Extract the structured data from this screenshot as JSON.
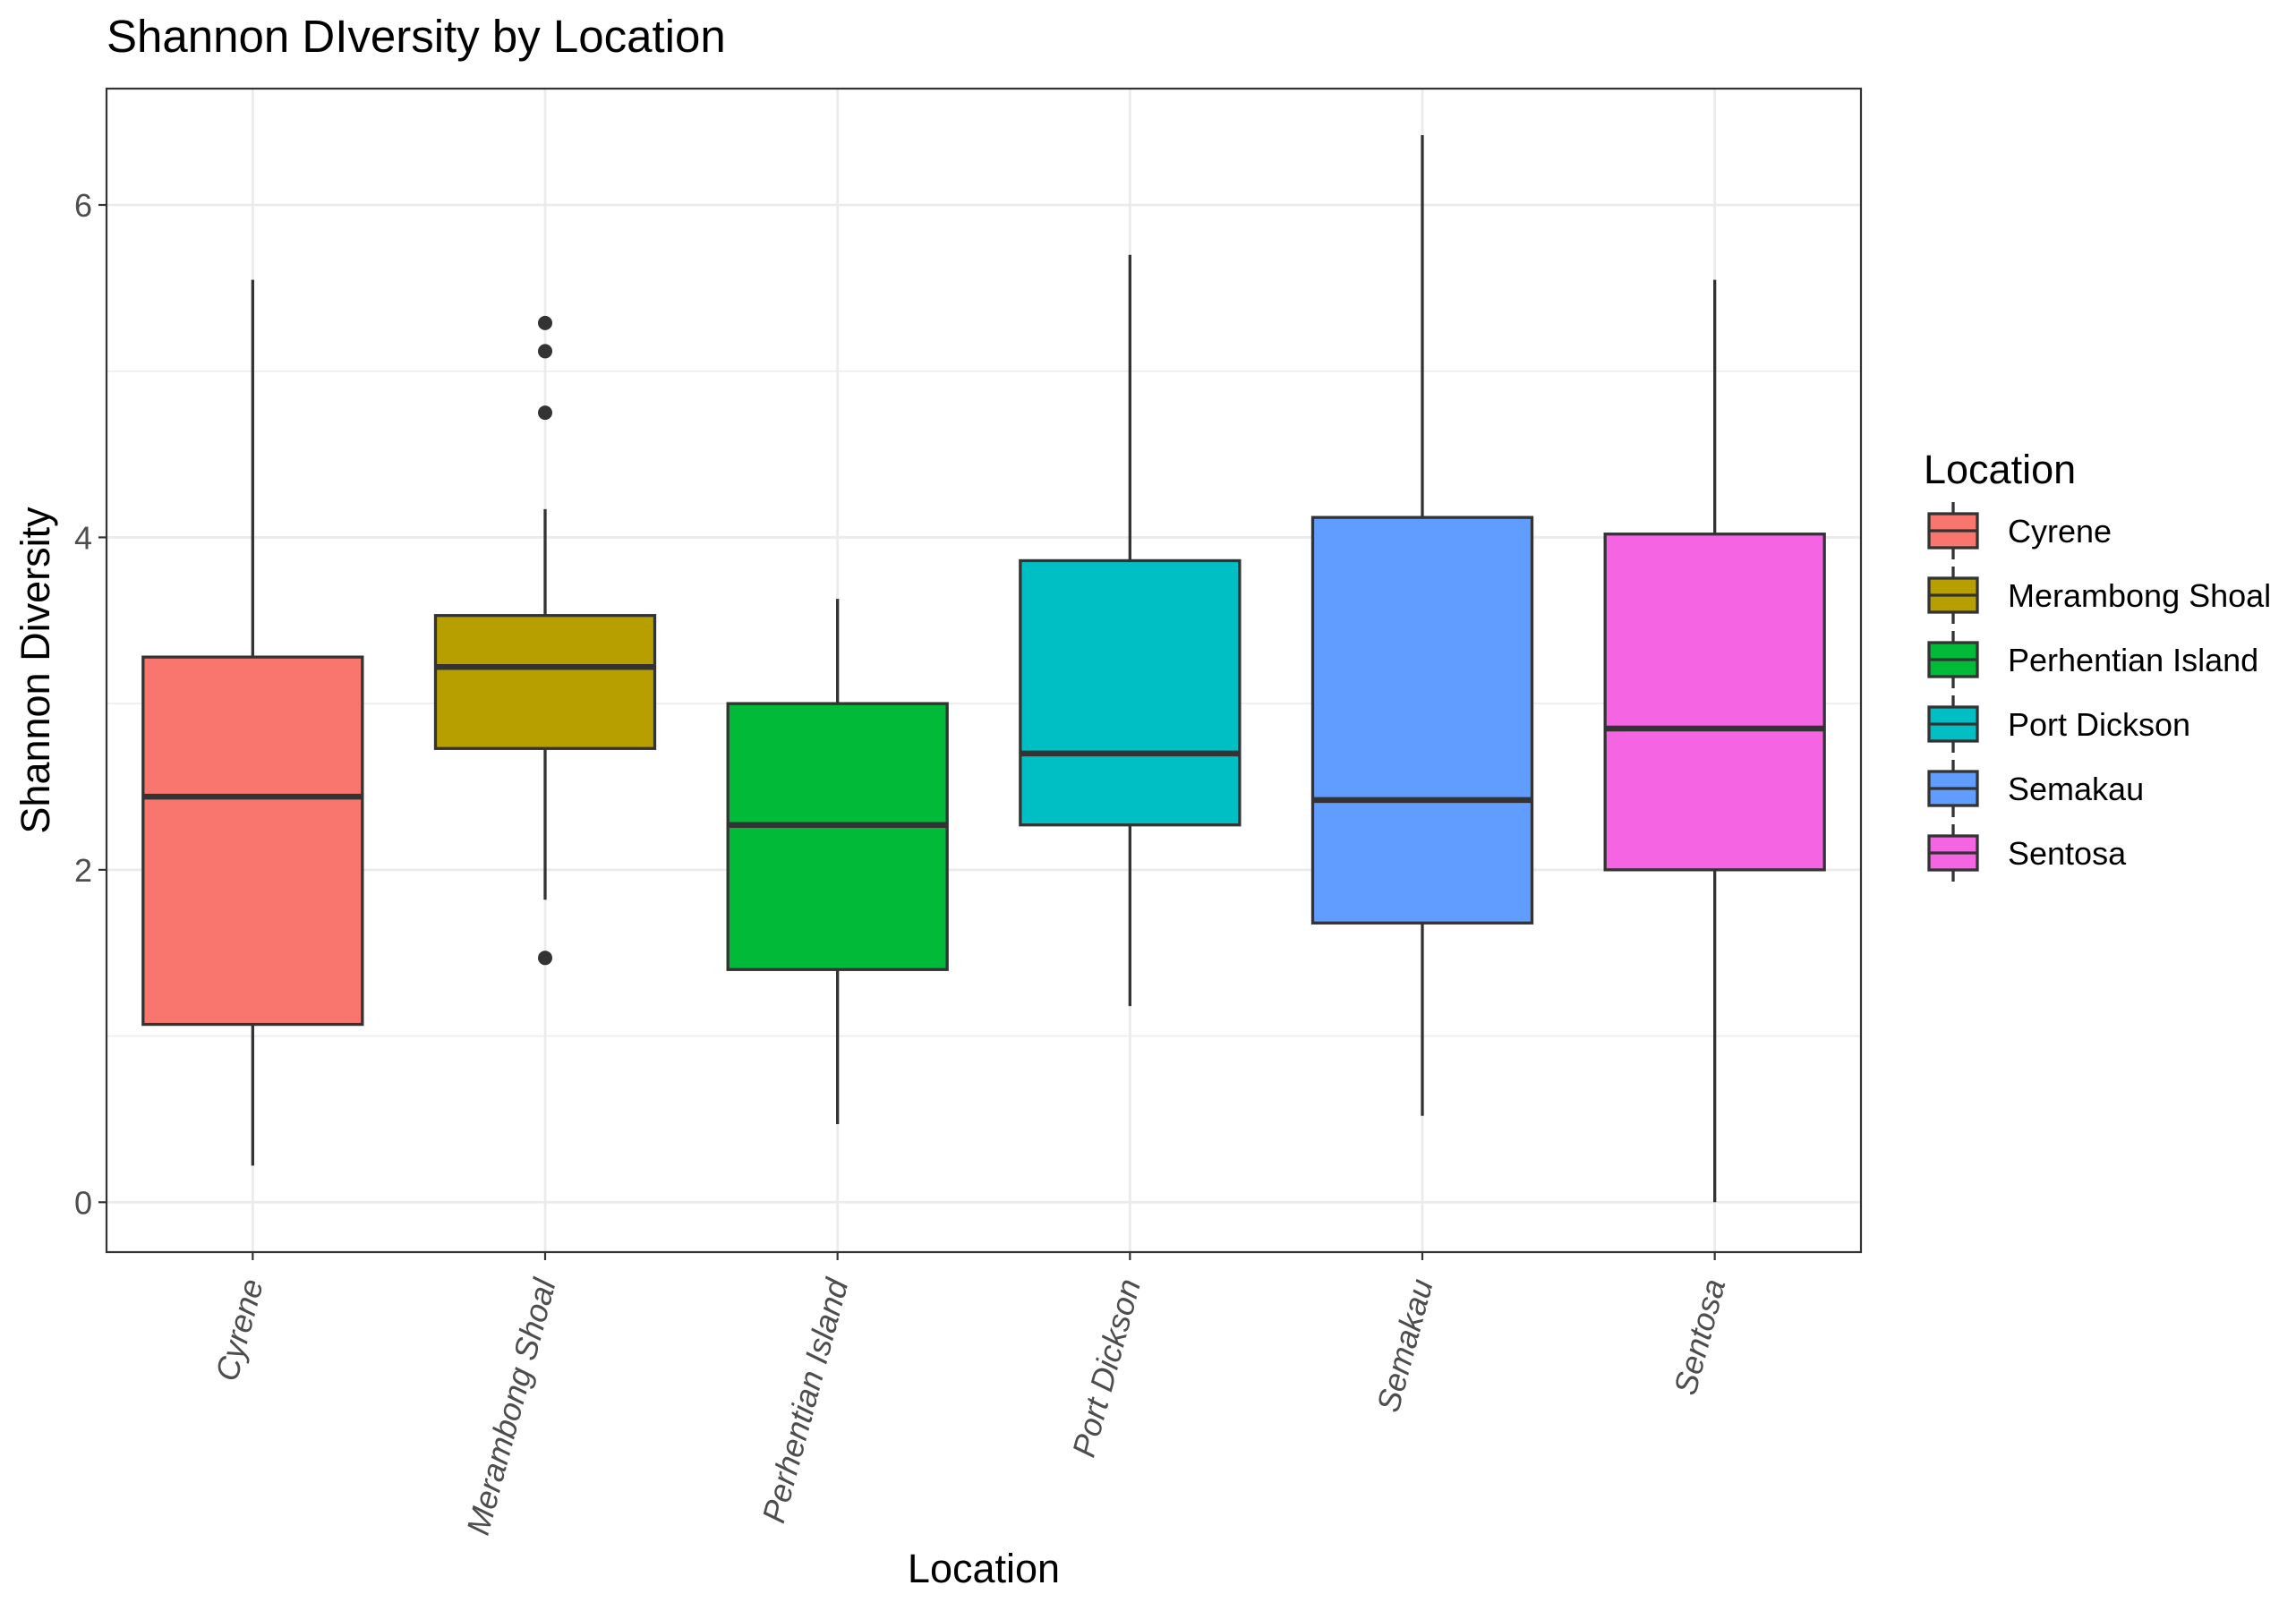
{
  "chart_data": {
    "type": "box",
    "title": "Shannon DIversity by Location",
    "xlabel": "Location",
    "ylabel": "Shannon Diversity",
    "ylim": [
      -0.3,
      6.7
    ],
    "y_ticks": [
      0,
      2,
      4,
      6
    ],
    "y_tick_labels": [
      "0",
      "2",
      "4",
      "6"
    ],
    "grid": true,
    "legend": {
      "title": "Location",
      "position": "right"
    },
    "series": [
      {
        "name": "Cyrene",
        "color": "#F8766D",
        "whisker_low": 0.22,
        "q1": 1.07,
        "median": 2.44,
        "q3": 3.28,
        "whisker_high": 5.55,
        "outliers": []
      },
      {
        "name": "Merambong Shoal",
        "color": "#B79F00",
        "whisker_low": 1.82,
        "q1": 2.73,
        "median": 3.22,
        "q3": 3.53,
        "whisker_high": 4.17,
        "outliers": [
          1.47,
          4.75,
          5.12,
          5.29
        ]
      },
      {
        "name": "Perhentian Island",
        "color": "#00BA38",
        "whisker_low": 0.47,
        "q1": 1.4,
        "median": 2.27,
        "q3": 3.0,
        "whisker_high": 3.63,
        "outliers": []
      },
      {
        "name": "Port Dickson",
        "color": "#00BFC4",
        "whisker_low": 1.18,
        "q1": 2.27,
        "median": 2.7,
        "q3": 3.86,
        "whisker_high": 5.7,
        "outliers": []
      },
      {
        "name": "Semakau",
        "color": "#619CFF",
        "whisker_low": 0.52,
        "q1": 1.68,
        "median": 2.42,
        "q3": 4.12,
        "whisker_high": 6.42,
        "outliers": []
      },
      {
        "name": "Sentosa",
        "color": "#F564E3",
        "whisker_low": 0.0,
        "q1": 2.0,
        "median": 2.85,
        "q3": 4.02,
        "whisker_high": 5.55,
        "outliers": []
      }
    ]
  }
}
